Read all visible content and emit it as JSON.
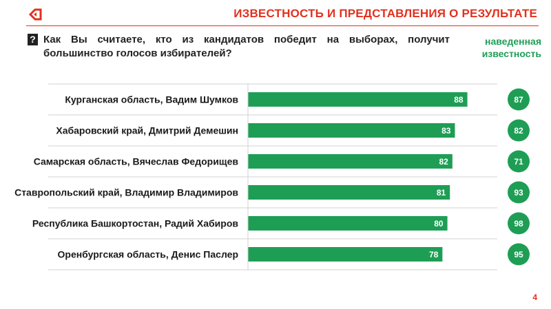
{
  "header": {
    "logo_icon": "arrow-mark-icon",
    "title": "ИЗВЕСТНОСТЬ И ПРЕДСТАВЛЕНИЯ О РЕЗУЛЬТАТЕ",
    "accent_color": "#e2301f"
  },
  "question": {
    "icon": "question-mark-icon",
    "text": "Как Вы считаете, кто из кандидатов победит на выборах, получит большинство голосов избирателей?"
  },
  "legend": {
    "circle_label": "наведенная известность",
    "color": "#1e9e55"
  },
  "chart_data": {
    "type": "bar",
    "orientation": "horizontal",
    "categories": [
      "Курганская область, Вадим Шумков",
      "Хабаровский край, Дмитрий Демешин",
      "Самарская область, Вячеслав Федорищев",
      "Ставропольский край, Владимир Владимиров",
      "Республика Башкортостан, Радий Хабиров",
      "Оренбургская область, Денис Паслер"
    ],
    "series": [
      {
        "values": [
          88,
          83,
          82,
          81,
          80,
          78
        ],
        "color": "#1e9e55"
      },
      {
        "name": "наведенная известность",
        "values": [
          87,
          82,
          71,
          93,
          98,
          95
        ],
        "color": "#1e9e55",
        "style": "circle"
      }
    ],
    "xlim": [
      0,
      100
    ],
    "data_labels": true,
    "grid": false
  },
  "page_number": "4"
}
